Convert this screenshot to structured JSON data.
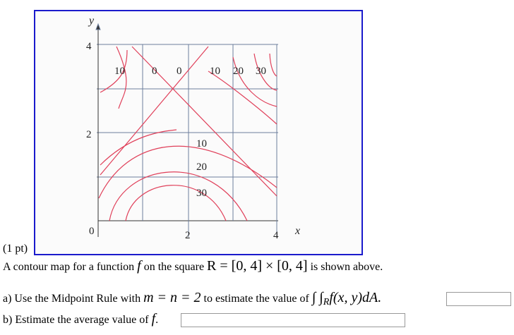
{
  "figure": {
    "y_axis_label": "y",
    "x_axis_label": "x",
    "y_tick_labels": [
      "4",
      "2",
      "0"
    ],
    "x_tick_labels": [
      "2",
      "4"
    ],
    "contour_labels": [
      "10",
      "0",
      "0",
      "10",
      "20",
      "30",
      "10",
      "20",
      "30"
    ]
  },
  "problem": {
    "points": "(1 pt)",
    "statement": [
      "A contour map for a function",
      "f",
      "on the square",
      "R = [0, 4] × [0, 4]",
      "is shown above."
    ],
    "part_a": [
      "a) Use the Midpoint Rule with",
      "m = n = 2",
      "to estimate the value of",
      "∫ ∫",
      "R",
      "f(x, y)dA."
    ],
    "part_b": [
      "b) Estimate the average value of",
      "f",
      "."
    ]
  }
}
